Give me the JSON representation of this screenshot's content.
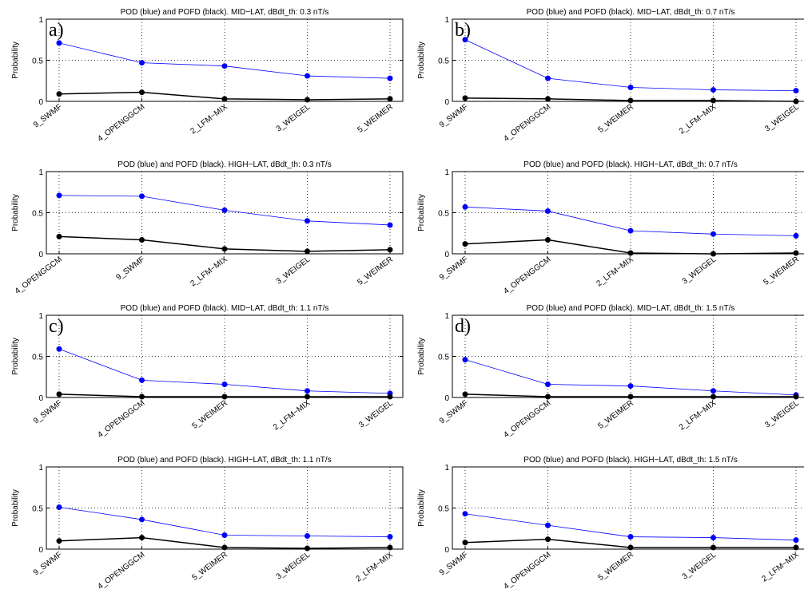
{
  "chart_data": [
    {
      "type": "line",
      "panel_label": "a)",
      "title": "POD (blue) and POFD (black). MID−LAT, dBdt_th: 0.3 nT/s",
      "xlabel": "",
      "ylabel": "Probability",
      "ylim": [
        0,
        1
      ],
      "yticks": [
        "0",
        "0.5",
        "1"
      ],
      "grid": true,
      "categories": [
        "9_SWMF",
        "4_OPENGGCM",
        "2_LFM−MIX",
        "3_WEIGEL",
        "5_WEIMER"
      ],
      "series": [
        {
          "color": "#0000ff",
          "values": [
            0.71,
            0.47,
            0.43,
            0.31,
            0.28
          ]
        },
        {
          "color": "#000000",
          "values": [
            0.09,
            0.11,
            0.03,
            0.02,
            0.03
          ]
        }
      ]
    },
    {
      "type": "line",
      "panel_label": "b)",
      "title": "POD (blue) and POFD (black). MID−LAT, dBdt_th: 0.7 nT/s",
      "xlabel": "",
      "ylabel": "Probability",
      "ylim": [
        0,
        1
      ],
      "yticks": [
        "0",
        "0.5",
        "1"
      ],
      "grid": true,
      "categories": [
        "9_SWMF",
        "4_OPENGGCM",
        "5_WEIMER",
        "2_LFM−MIX",
        "3_WEIGEL"
      ],
      "series": [
        {
          "color": "#0000ff",
          "values": [
            0.75,
            0.28,
            0.17,
            0.14,
            0.13
          ]
        },
        {
          "color": "#000000",
          "values": [
            0.04,
            0.03,
            0.01,
            0.01,
            0.0
          ]
        }
      ]
    },
    {
      "type": "line",
      "panel_label": "",
      "title": "POD (blue) and POFD (black). HIGH−LAT, dBdt_th: 0.3 nT/s",
      "xlabel": "",
      "ylabel": "Probability",
      "ylim": [
        0,
        1
      ],
      "yticks": [
        "0",
        "0.5",
        "1"
      ],
      "grid": true,
      "categories": [
        "4_OPENGGCM",
        "9_SWMF",
        "2_LFM−MIX",
        "3_WEIGEL",
        "5_WEIMER"
      ],
      "series": [
        {
          "color": "#0000ff",
          "values": [
            0.71,
            0.7,
            0.53,
            0.4,
            0.35
          ]
        },
        {
          "color": "#000000",
          "values": [
            0.21,
            0.17,
            0.06,
            0.03,
            0.05
          ]
        }
      ]
    },
    {
      "type": "line",
      "panel_label": "",
      "title": "POD (blue) and POFD (black). HIGH−LAT, dBdt_th: 0.7 nT/s",
      "xlabel": "",
      "ylabel": "Probability",
      "ylim": [
        0,
        1
      ],
      "yticks": [
        "0",
        "0.5",
        "1"
      ],
      "grid": true,
      "categories": [
        "9_SWMF",
        "4_OPENGGCM",
        "2_LFM−MIX",
        "3_WEIGEL",
        "5_WEIMER"
      ],
      "series": [
        {
          "color": "#0000ff",
          "values": [
            0.57,
            0.52,
            0.28,
            0.24,
            0.22
          ]
        },
        {
          "color": "#000000",
          "values": [
            0.12,
            0.17,
            0.01,
            0.0,
            0.01
          ]
        }
      ]
    },
    {
      "type": "line",
      "panel_label": "c)",
      "title": "POD (blue) and POFD (black). MID−LAT, dBdt_th: 1.1 nT/s",
      "xlabel": "",
      "ylabel": "Probability",
      "ylim": [
        0,
        1
      ],
      "yticks": [
        "0",
        "0.5",
        "1"
      ],
      "grid": true,
      "categories": [
        "9_SWMF",
        "4_OPENGGCM",
        "5_WEIMER",
        "2_LFM−MIX",
        "3_WEIGEL"
      ],
      "series": [
        {
          "color": "#0000ff",
          "values": [
            0.59,
            0.21,
            0.16,
            0.08,
            0.05
          ]
        },
        {
          "color": "#000000",
          "values": [
            0.04,
            0.01,
            0.01,
            0.01,
            0.01
          ]
        }
      ]
    },
    {
      "type": "line",
      "panel_label": "d)",
      "title": "POD (blue) and POFD (black). MID−LAT, dBdt_th: 1.5 nT/s",
      "xlabel": "",
      "ylabel": "Probability",
      "ylim": [
        0,
        1
      ],
      "yticks": [
        "0",
        "0.5",
        "1"
      ],
      "grid": true,
      "categories": [
        "9_SWMF",
        "4_OPENGGCM",
        "5_WEIMER",
        "2_LFM−MIX",
        "3_WEIGEL"
      ],
      "series": [
        {
          "color": "#0000ff",
          "values": [
            0.46,
            0.16,
            0.14,
            0.08,
            0.03
          ]
        },
        {
          "color": "#000000",
          "values": [
            0.04,
            0.01,
            0.01,
            0.01,
            0.01
          ]
        }
      ]
    },
    {
      "type": "line",
      "panel_label": "",
      "title": "POD (blue) and POFD (black). HIGH−LAT, dBdt_th: 1.1 nT/s",
      "xlabel": "",
      "ylabel": "Probability",
      "ylim": [
        0,
        1
      ],
      "yticks": [
        "0",
        "0.5",
        "1"
      ],
      "grid": true,
      "categories": [
        "9_SWMF",
        "4_OPENGGCM",
        "5_WEIMER",
        "3_WEIGEL",
        "2_LFM−MIX"
      ],
      "series": [
        {
          "color": "#0000ff",
          "values": [
            0.51,
            0.36,
            0.17,
            0.16,
            0.15
          ]
        },
        {
          "color": "#000000",
          "values": [
            0.1,
            0.14,
            0.02,
            0.01,
            0.02
          ]
        }
      ]
    },
    {
      "type": "line",
      "panel_label": "",
      "title": "POD (blue) and POFD (black). HIGH−LAT, dBdt_th: 1.5 nT/s",
      "xlabel": "",
      "ylabel": "Probability",
      "ylim": [
        0,
        1
      ],
      "yticks": [
        "0",
        "0.5",
        "1"
      ],
      "grid": true,
      "categories": [
        "9_SWMF",
        "4_OPENGGCM",
        "5_WEIMER",
        "3_WEIGEL",
        "2_LFM−MIX"
      ],
      "series": [
        {
          "color": "#0000ff",
          "values": [
            0.43,
            0.29,
            0.15,
            0.14,
            0.11
          ]
        },
        {
          "color": "#000000",
          "values": [
            0.08,
            0.12,
            0.02,
            0.02,
            0.02
          ]
        }
      ]
    }
  ]
}
